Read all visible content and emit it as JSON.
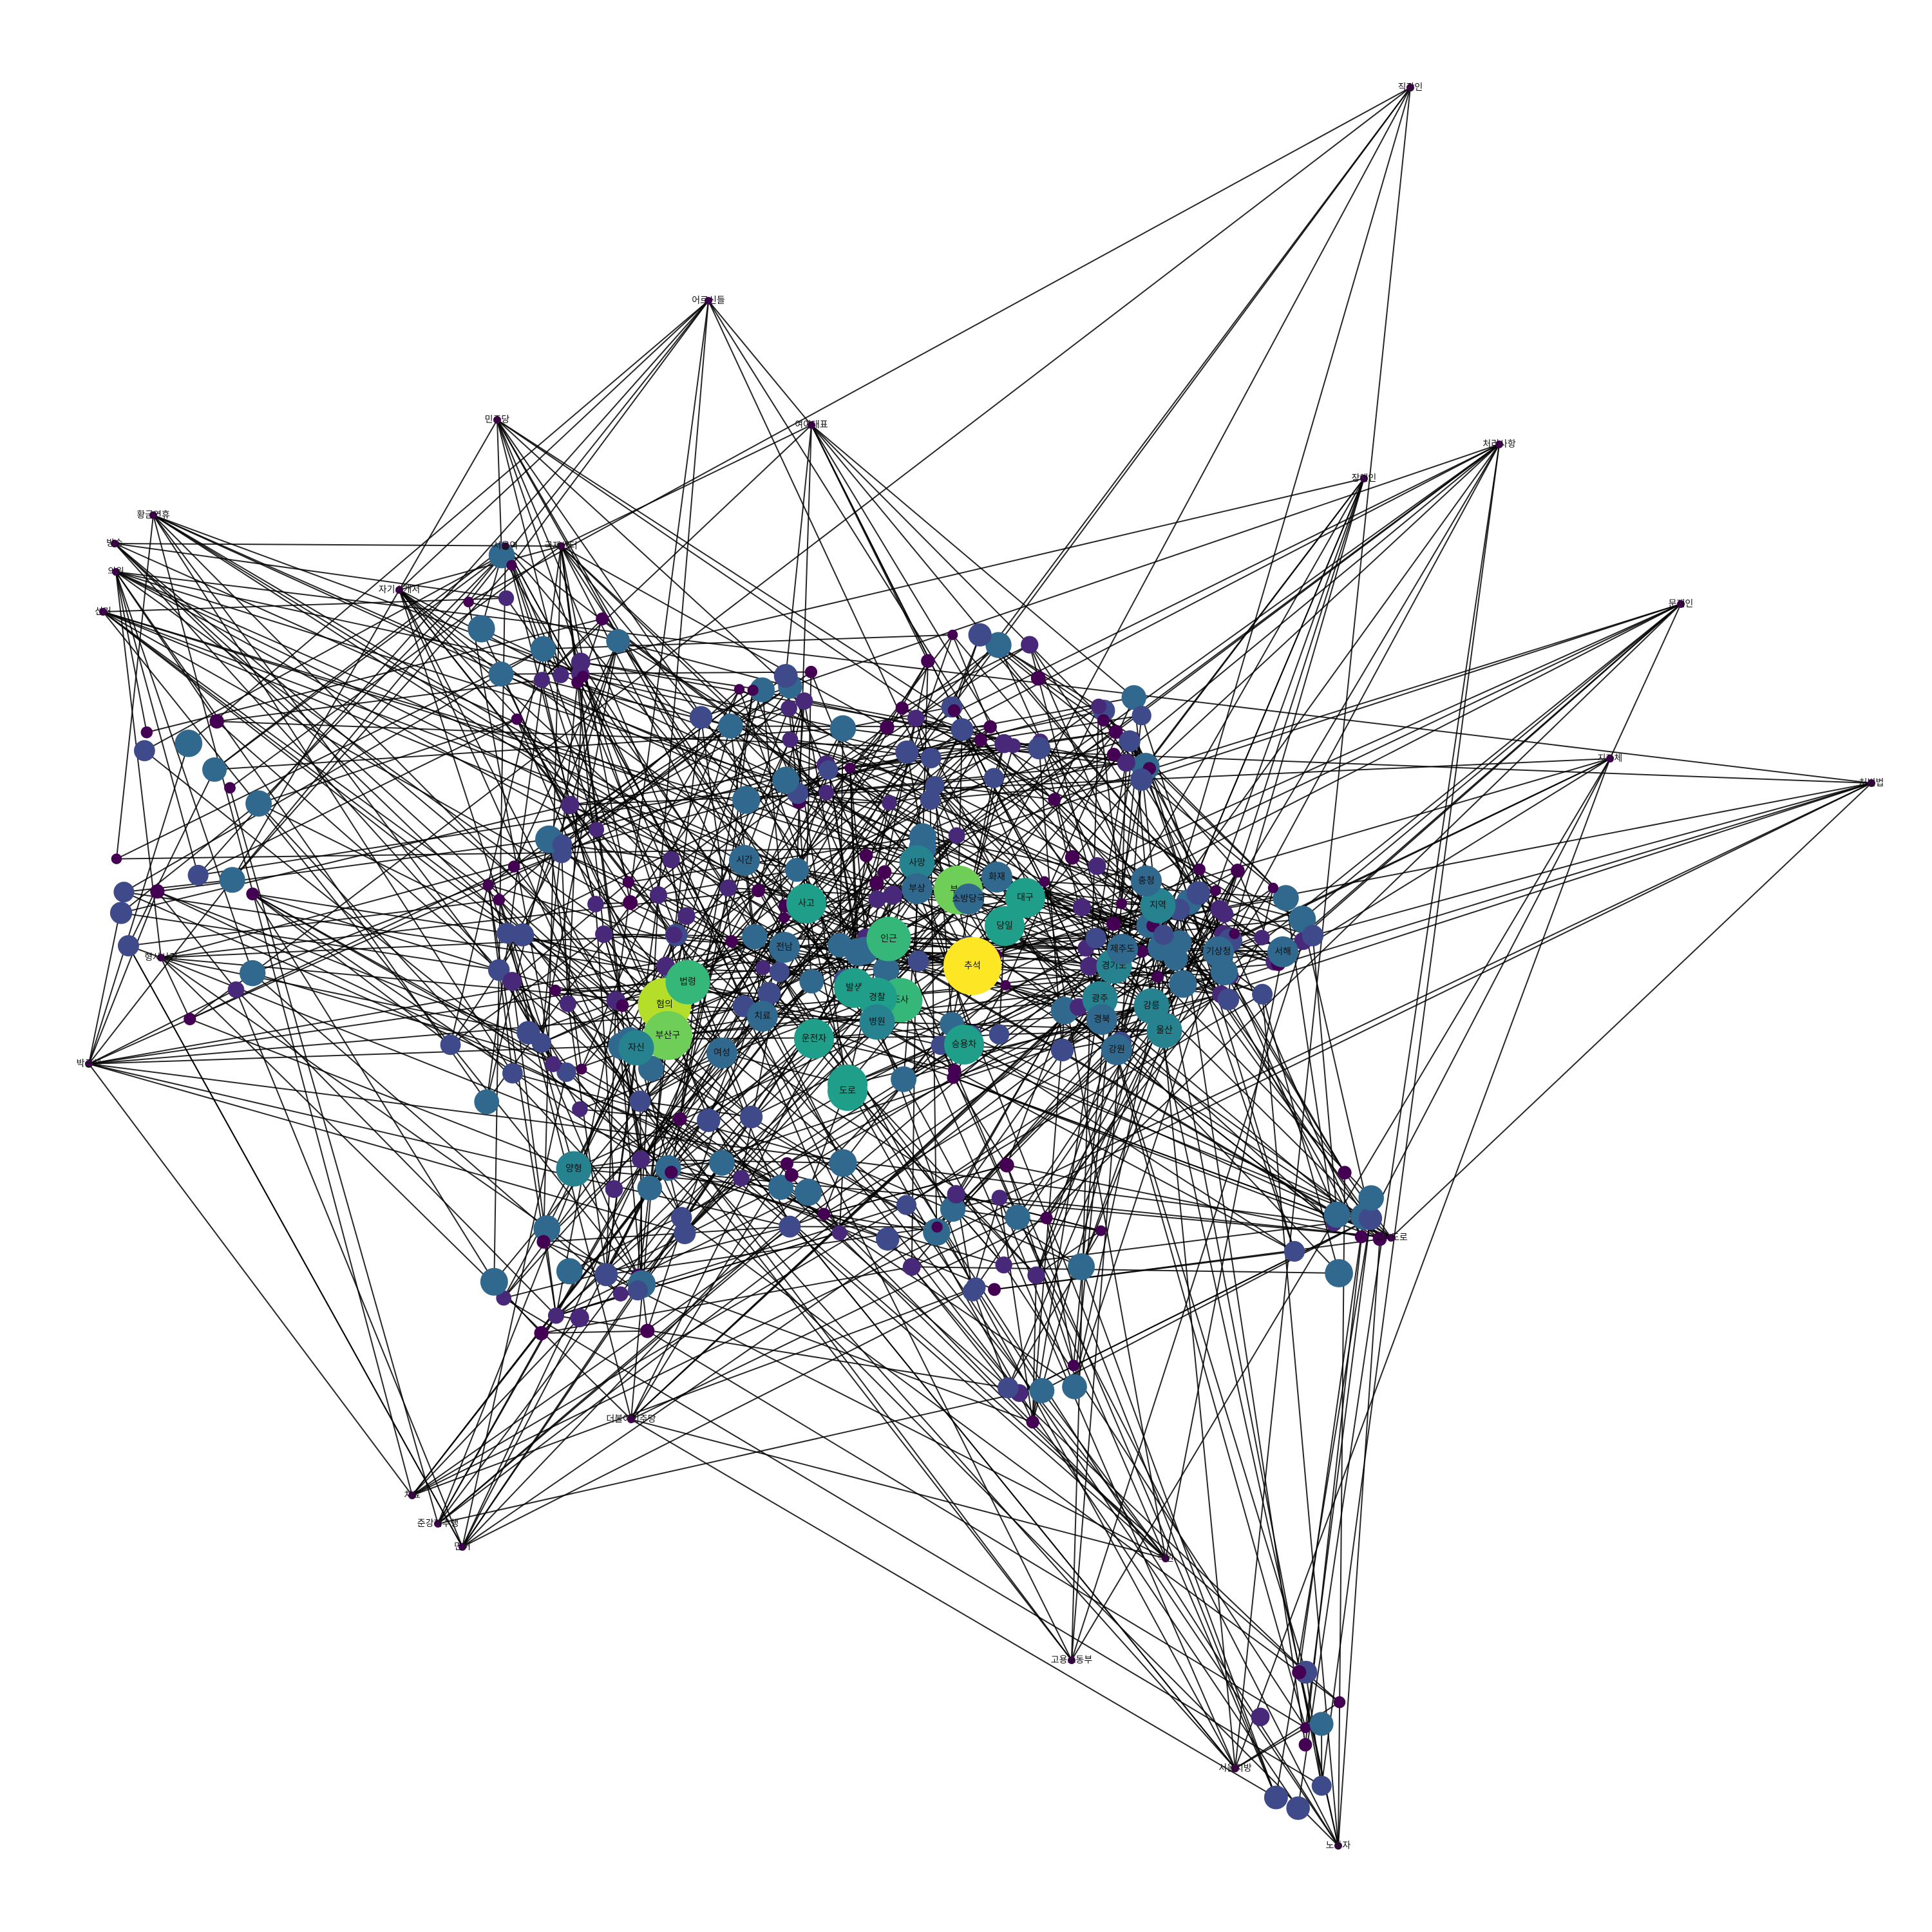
{
  "chart_data": {
    "type": "network",
    "colormap": [
      "#440154",
      "#482878",
      "#3e4a89",
      "#31688e",
      "#26828e",
      "#1f9e89",
      "#35b779",
      "#6ece58",
      "#b5de2b",
      "#fde725"
    ],
    "background": "#ffffff",
    "edge_color": "#000000",
    "nodes": [
      {
        "id": "n1",
        "label": "추석",
        "size": 10
      },
      {
        "id": "n2",
        "label": "혐의",
        "size": 9
      },
      {
        "id": "n3",
        "label": "부산구",
        "size": 8
      },
      {
        "id": "n4",
        "label": "부산",
        "size": 8
      },
      {
        "id": "n5",
        "label": "인근",
        "size": 7
      },
      {
        "id": "n6",
        "label": "조사",
        "size": 7
      },
      {
        "id": "n7",
        "label": "법령",
        "size": 7
      },
      {
        "id": "n8",
        "label": "대구",
        "size": 6
      },
      {
        "id": "n9",
        "label": "발생",
        "size": 6
      },
      {
        "id": "n10",
        "label": "차량",
        "size": 6
      },
      {
        "id": "n11",
        "label": "도로",
        "size": 6
      },
      {
        "id": "n12",
        "label": "경찰",
        "size": 6
      },
      {
        "id": "n13",
        "label": "운전자",
        "size": 6
      },
      {
        "id": "n14",
        "label": "당일",
        "size": 6
      },
      {
        "id": "n15",
        "label": "승용차",
        "size": 6
      },
      {
        "id": "n16",
        "label": "사고",
        "size": 6
      },
      {
        "id": "n17",
        "label": "병원",
        "size": 5
      },
      {
        "id": "n18",
        "label": "자신",
        "size": 5
      },
      {
        "id": "n19",
        "label": "양형",
        "size": 5
      },
      {
        "id": "n20",
        "label": "광주",
        "size": 5
      },
      {
        "id": "n21",
        "label": "강릉",
        "size": 5
      },
      {
        "id": "n22",
        "label": "울산",
        "size": 5
      },
      {
        "id": "n23",
        "label": "경기도",
        "size": 5
      },
      {
        "id": "n24",
        "label": "사망",
        "size": 5
      },
      {
        "id": "n25",
        "label": "지역",
        "size": 5
      },
      {
        "id": "n26",
        "label": "제주도",
        "size": 4
      },
      {
        "id": "n27",
        "label": "기상청",
        "size": 4
      },
      {
        "id": "n28",
        "label": "서해",
        "size": 4
      },
      {
        "id": "n29",
        "label": "충청",
        "size": 4
      },
      {
        "id": "n30",
        "label": "경북",
        "size": 4
      },
      {
        "id": "n31",
        "label": "강원",
        "size": 4
      },
      {
        "id": "n32",
        "label": "화재",
        "size": 4
      },
      {
        "id": "n33",
        "label": "소방당국",
        "size": 4
      },
      {
        "id": "n34",
        "label": "부상",
        "size": 4
      },
      {
        "id": "n35",
        "label": "시간",
        "size": 4
      },
      {
        "id": "n36",
        "label": "전남",
        "size": 4
      },
      {
        "id": "n37",
        "label": "여성",
        "size": 4
      },
      {
        "id": "n38",
        "label": "치료",
        "size": 4
      },
      {
        "id": "n39",
        "label": "직장인",
        "size": 1
      },
      {
        "id": "n40",
        "label": "어르신들",
        "size": 1
      },
      {
        "id": "n41",
        "label": "민주당",
        "size": 1
      },
      {
        "id": "n42",
        "label": "여야대표",
        "size": 1
      },
      {
        "id": "n43",
        "label": "서울역",
        "size": 1
      },
      {
        "id": "n44",
        "label": "국제센터",
        "size": 1
      },
      {
        "id": "n45",
        "label": "자기소개서",
        "size": 1
      },
      {
        "id": "n46",
        "label": "황금연휴",
        "size": 1
      },
      {
        "id": "n47",
        "label": "방송",
        "size": 1
      },
      {
        "id": "n48",
        "label": "의원",
        "size": 1
      },
      {
        "id": "n49",
        "label": "선거",
        "size": 1
      },
      {
        "id": "n50",
        "label": "박근혜",
        "size": 1
      },
      {
        "id": "n51",
        "label": "형사사건",
        "size": 1
      },
      {
        "id": "n52",
        "label": "장애인",
        "size": 1
      },
      {
        "id": "n53",
        "label": "처리사항",
        "size": 1
      },
      {
        "id": "n54",
        "label": "문재인",
        "size": 1
      },
      {
        "id": "n55",
        "label": "지자체",
        "size": 1
      },
      {
        "id": "n56",
        "label": "처벌법",
        "size": 1
      },
      {
        "id": "n57",
        "label": "고속도로",
        "size": 1
      },
      {
        "id": "n58",
        "label": "고용노동부",
        "size": 1
      },
      {
        "id": "n59",
        "label": "서울지방",
        "size": 1
      },
      {
        "id": "n60",
        "label": "노동자",
        "size": 1
      },
      {
        "id": "n61",
        "label": "준강제추행",
        "size": 1
      },
      {
        "id": "n62",
        "label": "더불어민주당",
        "size": 1
      },
      {
        "id": "n63",
        "label": "치료",
        "size": 1
      },
      {
        "id": "n64",
        "label": "면허",
        "size": 1
      },
      {
        "id": "n65",
        "label": "직원",
        "size": 1
      }
    ]
  }
}
